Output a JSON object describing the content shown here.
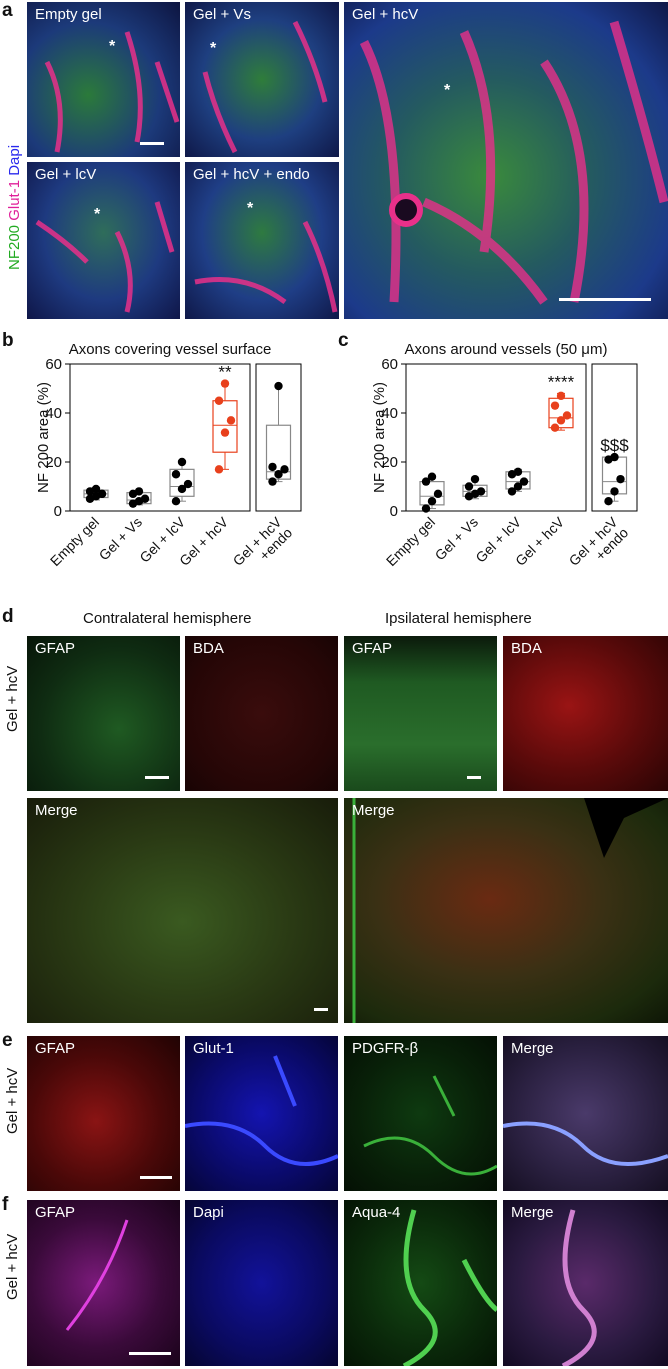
{
  "panel_a": {
    "letter": "a",
    "side_label": [
      {
        "text": "NF200",
        "color": "#22aa22"
      },
      {
        "text": " Glut-1",
        "color": "#e0209a"
      },
      {
        "text": " Dapi",
        "color": "#2a2aee"
      }
    ],
    "tiles": [
      "Empty gel",
      "Gel + Vs",
      "Gel + lcV",
      "Gel + hcV + endo",
      "Gel + hcV"
    ],
    "asterisk": "*"
  },
  "panel_b": {
    "letter": "b",
    "chart_data": {
      "type": "box",
      "title": "Axons covering vessel surface",
      "ylabel": "NF 200 area (%)",
      "ylim": [
        0,
        60
      ],
      "yticks": [
        0,
        20,
        40,
        60
      ],
      "categories": [
        "Empty gel",
        "Gel + Vs",
        "Gel + lcV",
        "Gel + hcV",
        "Gel + hcV +endo"
      ],
      "boxes": [
        {
          "q1": 5.5,
          "median": 7,
          "q3": 8.5,
          "min": 4.5,
          "max": 9.5,
          "points": [
            5,
            6,
            7,
            8,
            9,
            7
          ],
          "color": "#000000"
        },
        {
          "q1": 3,
          "median": 4.5,
          "q3": 7.5,
          "min": 2.5,
          "max": 8,
          "points": [
            3,
            4,
            5,
            7,
            8
          ],
          "color": "#000000"
        },
        {
          "q1": 6,
          "median": 10,
          "q3": 17,
          "min": 4,
          "max": 20,
          "points": [
            4,
            9,
            11,
            15,
            20
          ],
          "color": "#000000"
        },
        {
          "q1": 24,
          "median": 35,
          "q3": 45,
          "min": 17,
          "max": 52,
          "points": [
            17,
            32,
            37,
            45,
            52
          ],
          "color": "#e8401c"
        },
        {
          "q1": 13,
          "median": 16,
          "q3": 35,
          "min": 12,
          "max": 51,
          "points": [
            12,
            15,
            17,
            18,
            51
          ],
          "color": "#000000"
        }
      ],
      "annotations": [
        {
          "category_index": 3,
          "text": "**"
        }
      ]
    }
  },
  "panel_c": {
    "letter": "c",
    "chart_data": {
      "type": "box",
      "title": "Axons around vessels (50 μm)",
      "ylabel": "NF 200 area (%)",
      "ylim": [
        0,
        60
      ],
      "yticks": [
        0,
        20,
        40,
        60
      ],
      "categories": [
        "Empty gel",
        "Gel + Vs",
        "Gel + lcV",
        "Gel + hcV",
        "Gel + hcV +endo"
      ],
      "boxes": [
        {
          "q1": 2.5,
          "median": 6,
          "q3": 12,
          "min": 1,
          "max": 14.5,
          "points": [
            1,
            4,
            7,
            12,
            14
          ],
          "color": "#000000"
        },
        {
          "q1": 6,
          "median": 8,
          "q3": 10.5,
          "min": 5,
          "max": 13,
          "points": [
            6,
            7,
            8,
            10,
            13
          ],
          "color": "#000000"
        },
        {
          "q1": 9,
          "median": 12,
          "q3": 16,
          "min": 8,
          "max": 17,
          "points": [
            8,
            10,
            12,
            15,
            16
          ],
          "color": "#000000"
        },
        {
          "q1": 34,
          "median": 38,
          "q3": 46,
          "min": 33,
          "max": 48,
          "points": [
            34,
            37,
            39,
            43,
            47
          ],
          "color": "#e8401c"
        },
        {
          "q1": 7,
          "median": 12,
          "q3": 22,
          "min": 4,
          "max": 22,
          "points": [
            4,
            8,
            13,
            21,
            22
          ],
          "color": "#000000"
        }
      ],
      "annotations": [
        {
          "category_index": 3,
          "text": "****"
        },
        {
          "category_index": 4,
          "text": "$$$"
        }
      ]
    }
  },
  "panel_d": {
    "letter": "d",
    "heading_left": "Contralateral hemisphere",
    "heading_right": "Ipsilateral hemisphere",
    "side_label": "Gel + hcV",
    "tiles": [
      "GFAP",
      "BDA",
      "GFAP",
      "BDA",
      "Merge",
      "Merge"
    ]
  },
  "panel_e": {
    "letter": "e",
    "side_label": "Gel + hcV",
    "tiles": [
      "GFAP",
      "Glut-1",
      "PDGFR-β",
      "Merge"
    ]
  },
  "panel_f": {
    "letter": "f",
    "side_label": "Gel + hcV",
    "tiles": [
      "GFAP",
      "Dapi",
      "Aqua-4",
      "Merge"
    ]
  }
}
